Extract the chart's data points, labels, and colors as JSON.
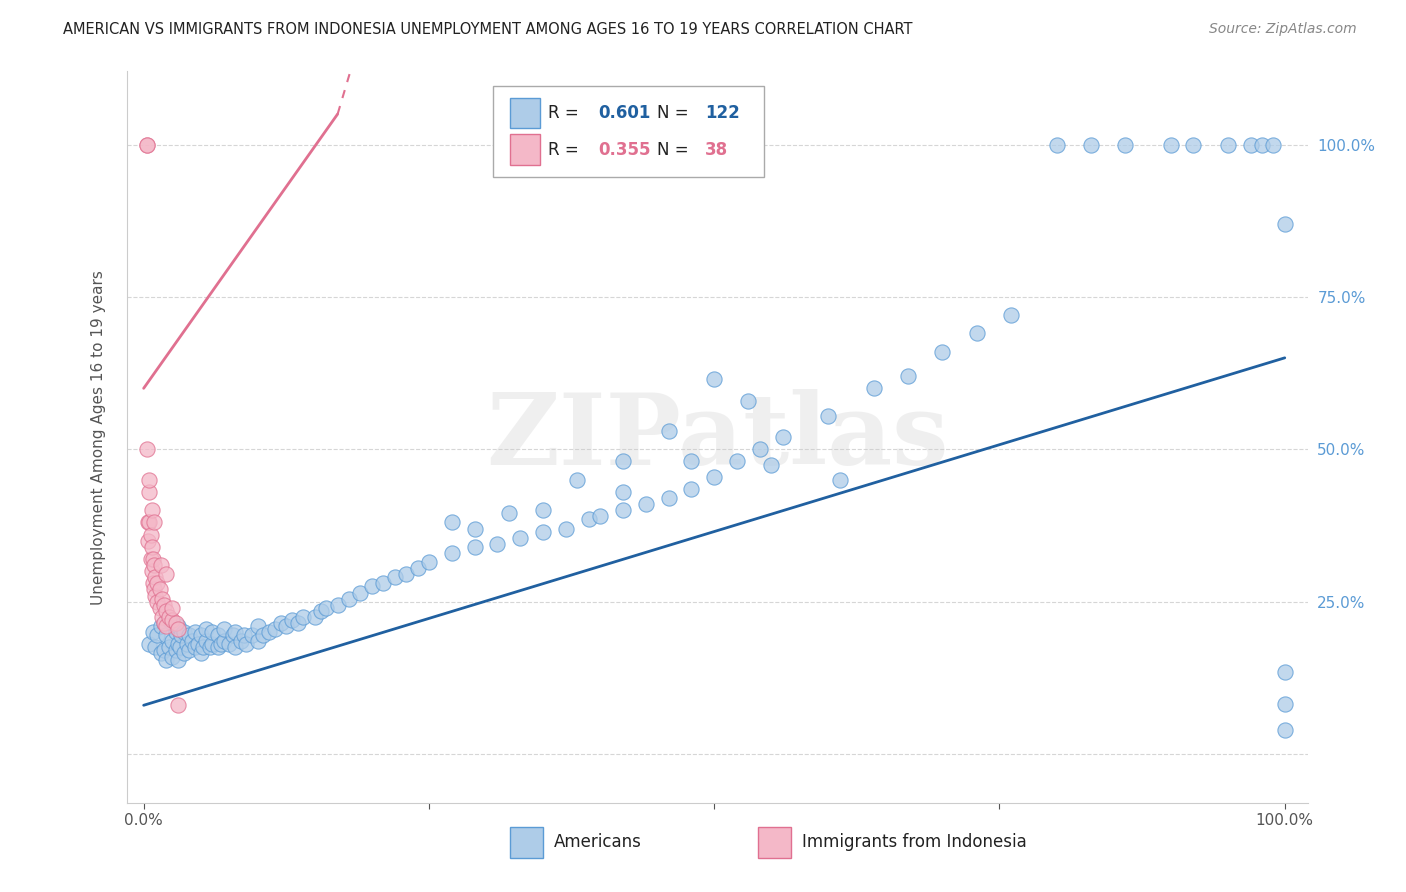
{
  "title": "AMERICAN VS IMMIGRANTS FROM INDONESIA UNEMPLOYMENT AMONG AGES 16 TO 19 YEARS CORRELATION CHART",
  "source": "Source: ZipAtlas.com",
  "ylabel": "Unemployment Among Ages 16 to 19 years",
  "xlim": [
    -0.015,
    1.02
  ],
  "ylim": [
    -0.08,
    1.12
  ],
  "xticks": [
    0.0,
    0.25,
    0.5,
    0.75,
    1.0
  ],
  "xticklabels": [
    "0.0%",
    "",
    "",
    "",
    "100.0%"
  ],
  "ytick_right_values": [
    1.0,
    0.75,
    0.5,
    0.25,
    0.0
  ],
  "ytick_right_labels": [
    "100.0%",
    "75.0%",
    "50.0%",
    "25.0%",
    ""
  ],
  "americans_R": 0.601,
  "americans_N": 122,
  "indonesia_R": 0.355,
  "indonesia_N": 38,
  "americans_color": "#aecce8",
  "americans_edge_color": "#5b9bd5",
  "indonesia_color": "#f4b8c8",
  "indonesia_edge_color": "#e07090",
  "trend_americans_color": "#2060a0",
  "trend_indonesia_color": "#e07090",
  "watermark_text": "ZIPatlas",
  "legend_R1": "0.601",
  "legend_N1": "122",
  "legend_R2": "0.355",
  "legend_N2": "38",
  "legend_label1": "Americans",
  "legend_label2": "Immigrants from Indonesia",
  "americans_x": [
    0.005,
    0.008,
    0.01,
    0.012,
    0.015,
    0.015,
    0.018,
    0.018,
    0.02,
    0.02,
    0.022,
    0.022,
    0.025,
    0.025,
    0.025,
    0.028,
    0.028,
    0.03,
    0.03,
    0.03,
    0.032,
    0.033,
    0.035,
    0.035,
    0.038,
    0.04,
    0.04,
    0.042,
    0.045,
    0.045,
    0.048,
    0.05,
    0.05,
    0.052,
    0.055,
    0.055,
    0.058,
    0.06,
    0.06,
    0.065,
    0.065,
    0.068,
    0.07,
    0.07,
    0.075,
    0.078,
    0.08,
    0.08,
    0.085,
    0.088,
    0.09,
    0.095,
    0.1,
    0.1,
    0.105,
    0.11,
    0.115,
    0.12,
    0.125,
    0.13,
    0.135,
    0.14,
    0.15,
    0.155,
    0.16,
    0.17,
    0.18,
    0.19,
    0.2,
    0.21,
    0.22,
    0.23,
    0.24,
    0.25,
    0.27,
    0.29,
    0.31,
    0.33,
    0.35,
    0.37,
    0.39,
    0.4,
    0.42,
    0.44,
    0.46,
    0.48,
    0.5,
    0.52,
    0.54,
    0.56,
    0.6,
    0.64,
    0.67,
    0.7,
    0.73,
    0.76,
    0.8,
    0.83,
    0.86,
    0.9,
    0.92,
    0.95,
    0.97,
    0.98,
    0.99,
    1.0,
    1.0,
    1.0,
    1.0,
    0.48,
    0.5,
    0.53,
    0.38,
    0.42,
    0.46,
    0.35,
    0.32,
    0.29,
    0.27,
    0.42,
    0.55,
    0.61
  ],
  "americans_y": [
    0.18,
    0.2,
    0.175,
    0.195,
    0.165,
    0.21,
    0.17,
    0.215,
    0.155,
    0.195,
    0.175,
    0.22,
    0.16,
    0.185,
    0.215,
    0.17,
    0.2,
    0.155,
    0.18,
    0.21,
    0.175,
    0.195,
    0.165,
    0.2,
    0.18,
    0.17,
    0.195,
    0.185,
    0.175,
    0.2,
    0.18,
    0.165,
    0.195,
    0.175,
    0.185,
    0.205,
    0.175,
    0.18,
    0.2,
    0.175,
    0.195,
    0.18,
    0.185,
    0.205,
    0.18,
    0.195,
    0.175,
    0.2,
    0.185,
    0.195,
    0.18,
    0.195,
    0.185,
    0.21,
    0.195,
    0.2,
    0.205,
    0.215,
    0.21,
    0.22,
    0.215,
    0.225,
    0.225,
    0.235,
    0.24,
    0.245,
    0.255,
    0.265,
    0.275,
    0.28,
    0.29,
    0.295,
    0.305,
    0.315,
    0.33,
    0.34,
    0.345,
    0.355,
    0.365,
    0.37,
    0.385,
    0.39,
    0.4,
    0.41,
    0.42,
    0.435,
    0.455,
    0.48,
    0.5,
    0.52,
    0.555,
    0.6,
    0.62,
    0.66,
    0.69,
    0.72,
    1.0,
    1.0,
    1.0,
    1.0,
    1.0,
    1.0,
    1.0,
    1.0,
    1.0,
    0.87,
    0.082,
    0.04,
    0.135,
    0.48,
    0.615,
    0.58,
    0.45,
    0.48,
    0.53,
    0.4,
    0.395,
    0.37,
    0.38,
    0.43,
    0.475,
    0.45
  ],
  "indonesia_x": [
    0.003,
    0.003,
    0.004,
    0.004,
    0.005,
    0.005,
    0.006,
    0.006,
    0.007,
    0.007,
    0.008,
    0.008,
    0.009,
    0.009,
    0.01,
    0.01,
    0.012,
    0.012,
    0.014,
    0.014,
    0.016,
    0.016,
    0.018,
    0.018,
    0.02,
    0.02,
    0.022,
    0.025,
    0.028,
    0.03,
    0.003,
    0.005,
    0.007,
    0.009,
    0.015,
    0.02,
    0.025,
    0.03
  ],
  "indonesia_y": [
    1.0,
    1.0,
    0.38,
    0.35,
    0.43,
    0.38,
    0.36,
    0.32,
    0.34,
    0.3,
    0.32,
    0.28,
    0.31,
    0.27,
    0.29,
    0.26,
    0.28,
    0.25,
    0.27,
    0.24,
    0.255,
    0.225,
    0.245,
    0.215,
    0.235,
    0.21,
    0.225,
    0.22,
    0.215,
    0.205,
    0.5,
    0.45,
    0.4,
    0.38,
    0.31,
    0.295,
    0.24,
    0.08
  ],
  "trend_am_x0": 0.0,
  "trend_am_x1": 1.0,
  "trend_am_y0": 0.08,
  "trend_am_y1": 0.65,
  "trend_ind_x0": 0.0,
  "trend_ind_x1": 0.17,
  "trend_ind_y0": 0.6,
  "trend_ind_y1": 1.05
}
